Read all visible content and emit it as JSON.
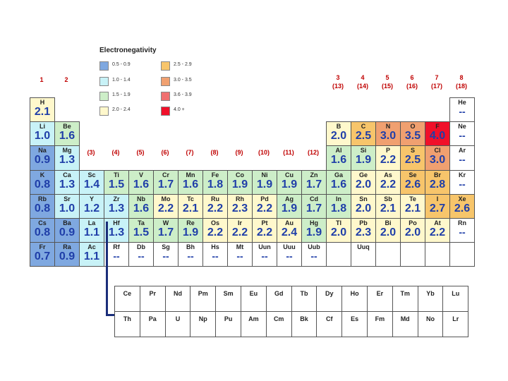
{
  "legend": {
    "title": "Electronegativity",
    "items": [
      {
        "label": "0.5 - 0.9",
        "color": "#7fa8e0"
      },
      {
        "label": "1.0 - 1.4",
        "color": "#c8f2f7"
      },
      {
        "label": "1.5 - 1.9",
        "color": "#cdeec8"
      },
      {
        "label": "2.0 - 2.4",
        "color": "#fff8cc"
      },
      {
        "label": "2.5 - 2.9",
        "color": "#f7c56b"
      },
      {
        "label": "3.0 - 3.5",
        "color": "#f0a070"
      },
      {
        "label": "3.6 - 3.9",
        "color": "#f07070"
      },
      {
        "label": "4.0 +",
        "color": "#f0102a"
      }
    ]
  },
  "groups": [
    {
      "label": "1",
      "col": 0,
      "row": -1
    },
    {
      "label": "2",
      "col": 1,
      "row": -1
    },
    {
      "label": "(3)",
      "col": 2,
      "row": 2
    },
    {
      "label": "(4)",
      "col": 3,
      "row": 2
    },
    {
      "label": "(5)",
      "col": 4,
      "row": 2
    },
    {
      "label": "(6)",
      "col": 5,
      "row": 2
    },
    {
      "label": "(7)",
      "col": 6,
      "row": 2
    },
    {
      "label": "(8)",
      "col": 7,
      "row": 2
    },
    {
      "label": "(9)",
      "col": 8,
      "row": 2
    },
    {
      "label": "(10)",
      "col": 9,
      "row": 2
    },
    {
      "label": "(11)",
      "col": 10,
      "row": 2
    },
    {
      "label": "(12)",
      "col": 11,
      "row": 2
    },
    {
      "label": "3\n(13)",
      "col": 12,
      "row": -1
    },
    {
      "label": "4\n(14)",
      "col": 13,
      "row": -1
    },
    {
      "label": "5\n(15)",
      "col": 14,
      "row": -1
    },
    {
      "label": "6\n(16)",
      "col": 15,
      "row": -1
    },
    {
      "label": "7\n(17)",
      "col": 16,
      "row": -1
    },
    {
      "label": "8\n(18)",
      "col": 17,
      "row": -1
    }
  ],
  "elements": [
    {
      "sym": "H",
      "en": "2.1",
      "col": 0,
      "row": 0,
      "color": "#fff8cc"
    },
    {
      "sym": "He",
      "en": "--",
      "col": 17,
      "row": 0,
      "color": "#ffffff"
    },
    {
      "sym": "Li",
      "en": "1.0",
      "col": 0,
      "row": 1,
      "color": "#c8f2f7"
    },
    {
      "sym": "Be",
      "en": "1.6",
      "col": 1,
      "row": 1,
      "color": "#cdeec8"
    },
    {
      "sym": "B",
      "en": "2.0",
      "col": 12,
      "row": 1,
      "color": "#fff8cc"
    },
    {
      "sym": "C",
      "en": "2.5",
      "col": 13,
      "row": 1,
      "color": "#f7c56b"
    },
    {
      "sym": "N",
      "en": "3.0",
      "col": 14,
      "row": 1,
      "color": "#f0a070"
    },
    {
      "sym": "O",
      "en": "3.5",
      "col": 15,
      "row": 1,
      "color": "#f0a070"
    },
    {
      "sym": "F",
      "en": "4.0",
      "col": 16,
      "row": 1,
      "color": "#f0102a"
    },
    {
      "sym": "Ne",
      "en": "--",
      "col": 17,
      "row": 1,
      "color": "#ffffff"
    },
    {
      "sym": "Na",
      "en": "0.9",
      "col": 0,
      "row": 2,
      "color": "#7fa8e0"
    },
    {
      "sym": "Mg",
      "en": "1.3",
      "col": 1,
      "row": 2,
      "color": "#c8f2f7"
    },
    {
      "sym": "Al",
      "en": "1.6",
      "col": 12,
      "row": 2,
      "color": "#cdeec8"
    },
    {
      "sym": "Si",
      "en": "1.9",
      "col": 13,
      "row": 2,
      "color": "#cdeec8"
    },
    {
      "sym": "P",
      "en": "2.2",
      "col": 14,
      "row": 2,
      "color": "#fff8cc"
    },
    {
      "sym": "S",
      "en": "2.5",
      "col": 15,
      "row": 2,
      "color": "#f7c56b"
    },
    {
      "sym": "Cl",
      "en": "3.0",
      "col": 16,
      "row": 2,
      "color": "#f0a070"
    },
    {
      "sym": "Ar",
      "en": "--",
      "col": 17,
      "row": 2,
      "color": "#ffffff"
    },
    {
      "sym": "K",
      "en": "0.8",
      "col": 0,
      "row": 3,
      "color": "#7fa8e0"
    },
    {
      "sym": "Ca",
      "en": "1.3",
      "col": 1,
      "row": 3,
      "color": "#c8f2f7"
    },
    {
      "sym": "Sc",
      "en": "1.4",
      "col": 2,
      "row": 3,
      "color": "#c8f2f7"
    },
    {
      "sym": "Ti",
      "en": "1.5",
      "col": 3,
      "row": 3,
      "color": "#cdeec8"
    },
    {
      "sym": "V",
      "en": "1.6",
      "col": 4,
      "row": 3,
      "color": "#cdeec8"
    },
    {
      "sym": "Cr",
      "en": "1.7",
      "col": 5,
      "row": 3,
      "color": "#cdeec8"
    },
    {
      "sym": "Mn",
      "en": "1.6",
      "col": 6,
      "row": 3,
      "color": "#cdeec8"
    },
    {
      "sym": "Fe",
      "en": "1.8",
      "col": 7,
      "row": 3,
      "color": "#cdeec8"
    },
    {
      "sym": "Co",
      "en": "1.9",
      "col": 8,
      "row": 3,
      "color": "#cdeec8"
    },
    {
      "sym": "Ni",
      "en": "1.9",
      "col": 9,
      "row": 3,
      "color": "#cdeec8"
    },
    {
      "sym": "Cu",
      "en": "1.9",
      "col": 10,
      "row": 3,
      "color": "#cdeec8"
    },
    {
      "sym": "Zn",
      "en": "1.7",
      "col": 11,
      "row": 3,
      "color": "#cdeec8"
    },
    {
      "sym": "Ga",
      "en": "1.6",
      "col": 12,
      "row": 3,
      "color": "#cdeec8"
    },
    {
      "sym": "Ge",
      "en": "2.0",
      "col": 13,
      "row": 3,
      "color": "#fff8cc"
    },
    {
      "sym": "As",
      "en": "2.2",
      "col": 14,
      "row": 3,
      "color": "#fff8cc"
    },
    {
      "sym": "Se",
      "en": "2.6",
      "col": 15,
      "row": 3,
      "color": "#f7c56b"
    },
    {
      "sym": "Br",
      "en": "2.8",
      "col": 16,
      "row": 3,
      "color": "#f7c56b"
    },
    {
      "sym": "Kr",
      "en": "--",
      "col": 17,
      "row": 3,
      "color": "#ffffff"
    },
    {
      "sym": "Rb",
      "en": "0.8",
      "col": 0,
      "row": 4,
      "color": "#7fa8e0"
    },
    {
      "sym": "Sr",
      "en": "1.0",
      "col": 1,
      "row": 4,
      "color": "#c8f2f7"
    },
    {
      "sym": "Y",
      "en": "1.2",
      "col": 2,
      "row": 4,
      "color": "#c8f2f7"
    },
    {
      "sym": "Zr",
      "en": "1.3",
      "col": 3,
      "row": 4,
      "color": "#c8f2f7"
    },
    {
      "sym": "Nb",
      "en": "1.6",
      "col": 4,
      "row": 4,
      "color": "#cdeec8"
    },
    {
      "sym": "Mo",
      "en": "2.2",
      "col": 5,
      "row": 4,
      "color": "#fff8cc"
    },
    {
      "sym": "Tc",
      "en": "2.1",
      "col": 6,
      "row": 4,
      "color": "#fff8cc"
    },
    {
      "sym": "Ru",
      "en": "2.2",
      "col": 7,
      "row": 4,
      "color": "#fff8cc"
    },
    {
      "sym": "Rh",
      "en": "2.3",
      "col": 8,
      "row": 4,
      "color": "#fff8cc"
    },
    {
      "sym": "Pd",
      "en": "2.2",
      "col": 9,
      "row": 4,
      "color": "#fff8cc"
    },
    {
      "sym": "Ag",
      "en": "1.9",
      "col": 10,
      "row": 4,
      "color": "#cdeec8"
    },
    {
      "sym": "Cd",
      "en": "1.7",
      "col": 11,
      "row": 4,
      "color": "#cdeec8"
    },
    {
      "sym": "In",
      "en": "1.8",
      "col": 12,
      "row": 4,
      "color": "#cdeec8"
    },
    {
      "sym": "Sn",
      "en": "2.0",
      "col": 13,
      "row": 4,
      "color": "#fff8cc"
    },
    {
      "sym": "Sb",
      "en": "2.1",
      "col": 14,
      "row": 4,
      "color": "#fff8cc"
    },
    {
      "sym": "Te",
      "en": "2.1",
      "col": 15,
      "row": 4,
      "color": "#fff8cc"
    },
    {
      "sym": "I",
      "en": "2.7",
      "col": 16,
      "row": 4,
      "color": "#f7c56b"
    },
    {
      "sym": "Xe",
      "en": "2.6",
      "col": 17,
      "row": 4,
      "color": "#f7c56b"
    },
    {
      "sym": "Cs",
      "en": "0.8",
      "col": 0,
      "row": 5,
      "color": "#7fa8e0"
    },
    {
      "sym": "Ba",
      "en": "0.9",
      "col": 1,
      "row": 5,
      "color": "#7fa8e0"
    },
    {
      "sym": "La",
      "en": "1.1",
      "col": 2,
      "row": 5,
      "color": "#c8f2f7"
    },
    {
      "sym": "Hf",
      "en": "1.3",
      "col": 3,
      "row": 5,
      "color": "#c8f2f7"
    },
    {
      "sym": "Ta",
      "en": "1.5",
      "col": 4,
      "row": 5,
      "color": "#cdeec8"
    },
    {
      "sym": "W",
      "en": "1.7",
      "col": 5,
      "row": 5,
      "color": "#cdeec8"
    },
    {
      "sym": "Re",
      "en": "1.9",
      "col": 6,
      "row": 5,
      "color": "#cdeec8"
    },
    {
      "sym": "Os",
      "en": "2.2",
      "col": 7,
      "row": 5,
      "color": "#fff8cc"
    },
    {
      "sym": "Ir",
      "en": "2.2",
      "col": 8,
      "row": 5,
      "color": "#fff8cc"
    },
    {
      "sym": "Pt",
      "en": "2.2",
      "col": 9,
      "row": 5,
      "color": "#fff8cc"
    },
    {
      "sym": "Au",
      "en": "2.4",
      "col": 10,
      "row": 5,
      "color": "#fff8cc"
    },
    {
      "sym": "Hg",
      "en": "1.9",
      "col": 11,
      "row": 5,
      "color": "#cdeec8"
    },
    {
      "sym": "Tl",
      "en": "2.0",
      "col": 12,
      "row": 5,
      "color": "#fff8cc"
    },
    {
      "sym": "Pb",
      "en": "2.3",
      "col": 13,
      "row": 5,
      "color": "#fff8cc"
    },
    {
      "sym": "Bi",
      "en": "2.0",
      "col": 14,
      "row": 5,
      "color": "#fff8cc"
    },
    {
      "sym": "Po",
      "en": "2.0",
      "col": 15,
      "row": 5,
      "color": "#fff8cc"
    },
    {
      "sym": "At",
      "en": "2.2",
      "col": 16,
      "row": 5,
      "color": "#fff8cc"
    },
    {
      "sym": "Rn",
      "en": "--",
      "col": 17,
      "row": 5,
      "color": "#ffffff"
    },
    {
      "sym": "Fr",
      "en": "0.7",
      "col": 0,
      "row": 6,
      "color": "#7fa8e0"
    },
    {
      "sym": "Ra",
      "en": "0.9",
      "col": 1,
      "row": 6,
      "color": "#7fa8e0"
    },
    {
      "sym": "Ac",
      "en": "1.1",
      "col": 2,
      "row": 6,
      "color": "#c8f2f7"
    },
    {
      "sym": "Rf",
      "en": "--",
      "col": 3,
      "row": 6,
      "color": "#ffffff"
    },
    {
      "sym": "Db",
      "en": "--",
      "col": 4,
      "row": 6,
      "color": "#ffffff"
    },
    {
      "sym": "Sg",
      "en": "--",
      "col": 5,
      "row": 6,
      "color": "#ffffff"
    },
    {
      "sym": "Bh",
      "en": "--",
      "col": 6,
      "row": 6,
      "color": "#ffffff"
    },
    {
      "sym": "Hs",
      "en": "--",
      "col": 7,
      "row": 6,
      "color": "#ffffff"
    },
    {
      "sym": "Mt",
      "en": "--",
      "col": 8,
      "row": 6,
      "color": "#ffffff"
    },
    {
      "sym": "Uun",
      "en": "--",
      "col": 9,
      "row": 6,
      "color": "#ffffff"
    },
    {
      "sym": "Uuu",
      "en": "--",
      "col": 10,
      "row": 6,
      "color": "#ffffff"
    },
    {
      "sym": "Uub",
      "en": "--",
      "col": 11,
      "row": 6,
      "color": "#ffffff"
    },
    {
      "sym": "",
      "en": "",
      "col": 12,
      "row": 6,
      "color": "#ffffff"
    },
    {
      "sym": "Uuq",
      "en": "",
      "col": 13,
      "row": 6,
      "color": "#ffffff"
    },
    {
      "sym": "",
      "en": "",
      "col": 14,
      "row": 6,
      "color": "#ffffff"
    },
    {
      "sym": "",
      "en": "",
      "col": 15,
      "row": 6,
      "color": "#ffffff"
    },
    {
      "sym": "",
      "en": "",
      "col": 16,
      "row": 6,
      "color": "#ffffff"
    },
    {
      "sym": "",
      "en": "",
      "col": 17,
      "row": 6,
      "color": "#ffffff"
    }
  ],
  "f_block": [
    [
      "Ce",
      "Pr",
      "Nd",
      "Pm",
      "Sm",
      "Eu",
      "Gd",
      "Tb",
      "Dy",
      "Ho",
      "Er",
      "Tm",
      "Yb",
      "Lu"
    ],
    [
      "Th",
      "Pa",
      "U",
      "Np",
      "Pu",
      "Am",
      "Cm",
      "Bk",
      "Cf",
      "Es",
      "Fm",
      "Md",
      "No",
      "Lr"
    ]
  ]
}
